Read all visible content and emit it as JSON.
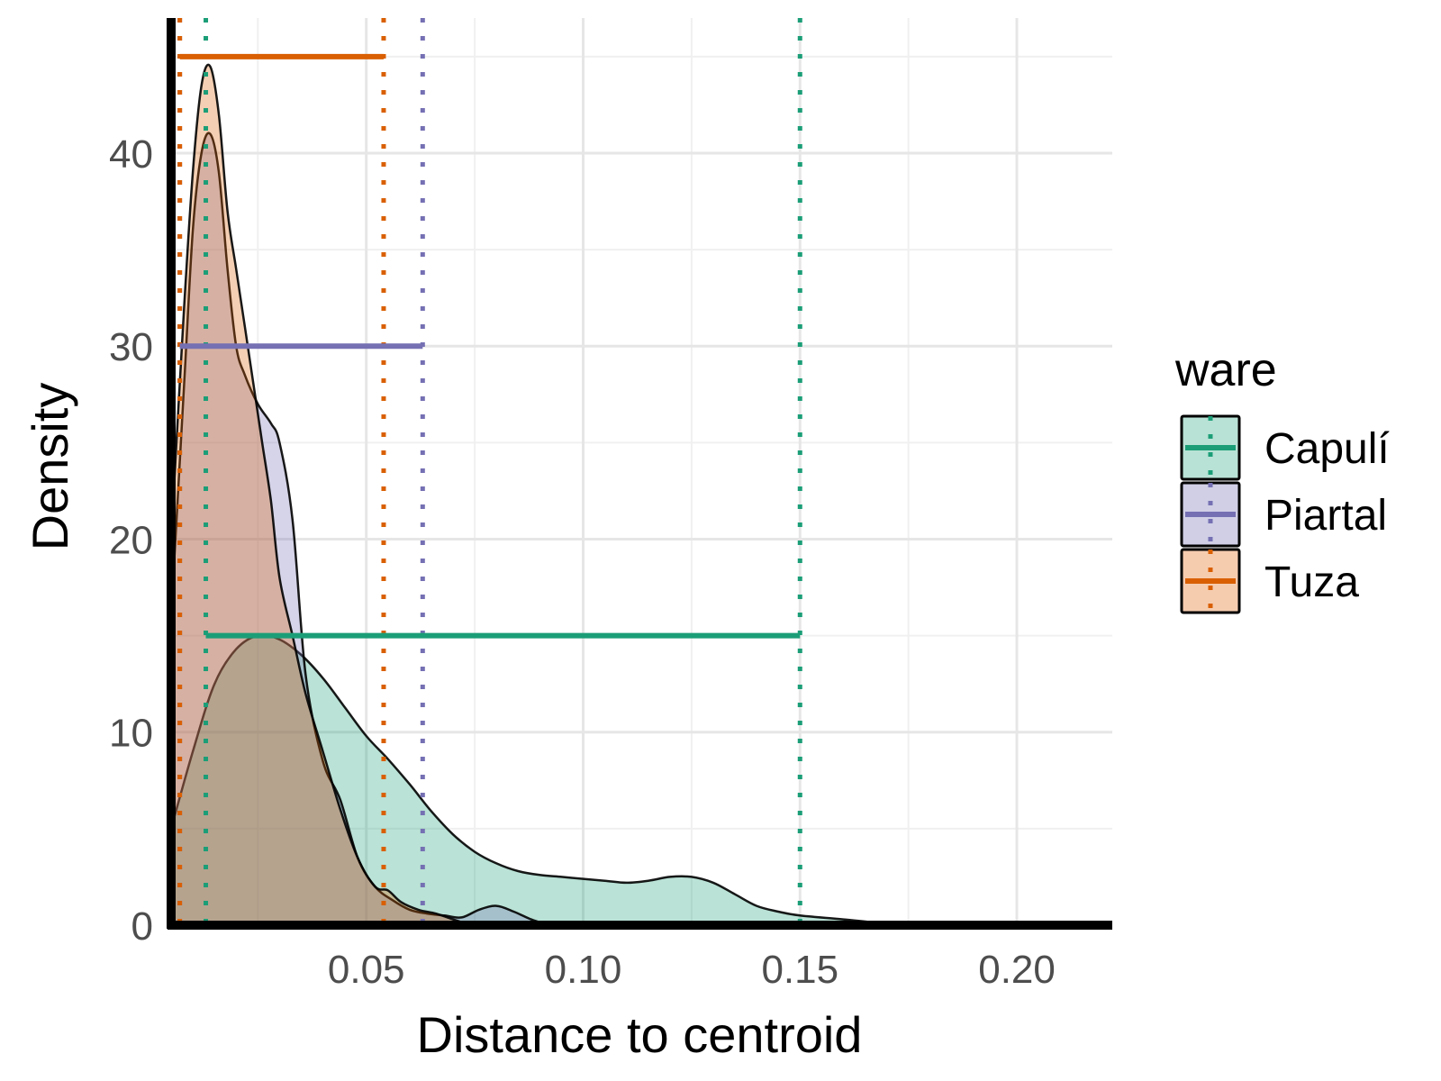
{
  "chart_data": {
    "type": "area",
    "title": "",
    "xlabel": "Distance to centroid",
    "ylabel": "Density",
    "xlim": [
      0.005,
      0.222
    ],
    "ylim": [
      0,
      47
    ],
    "x_ticks": [
      0.05,
      0.1,
      0.15,
      0.2
    ],
    "x_tick_labels": [
      "0.05",
      "0.10",
      "0.15",
      "0.20"
    ],
    "y_ticks": [
      0,
      10,
      20,
      30,
      40
    ],
    "y_tick_labels": [
      "0",
      "10",
      "20",
      "30",
      "40"
    ],
    "grid": true,
    "legend": {
      "title": "ware",
      "position": "right"
    },
    "series": [
      {
        "name": "Capulí",
        "color": "#1b9e77",
        "fill": "#b8e2d5",
        "range_line": {
          "x_start": 0.013,
          "x_end": 0.15,
          "y": 15
        },
        "vlines": [
          0.013,
          0.15
        ],
        "x": [
          0.005,
          0.01,
          0.015,
          0.02,
          0.025,
          0.03,
          0.035,
          0.04,
          0.045,
          0.05,
          0.055,
          0.06,
          0.065,
          0.07,
          0.075,
          0.08,
          0.085,
          0.09,
          0.095,
          0.1,
          0.105,
          0.11,
          0.115,
          0.12,
          0.125,
          0.13,
          0.135,
          0.14,
          0.145,
          0.15,
          0.16,
          0.17,
          0.18,
          0.19,
          0.2,
          0.21
        ],
        "values": [
          5.0,
          9.0,
          12.5,
          14.3,
          15.0,
          14.8,
          14.0,
          12.8,
          11.3,
          9.8,
          8.6,
          7.3,
          5.9,
          4.7,
          3.8,
          3.2,
          2.8,
          2.6,
          2.5,
          2.4,
          2.3,
          2.2,
          2.3,
          2.5,
          2.5,
          2.2,
          1.6,
          1.0,
          0.7,
          0.5,
          0.3,
          0.1,
          0.05,
          0.05,
          0.1,
          0.0
        ]
      },
      {
        "name": "Piartal",
        "color": "#7570b3",
        "fill": "#d0cfe6",
        "range_line": {
          "x_start": 0.007,
          "x_end": 0.063,
          "y": 30
        },
        "vlines": [
          0.007,
          0.063
        ],
        "x": [
          0.005,
          0.008,
          0.01,
          0.012,
          0.014,
          0.016,
          0.018,
          0.02,
          0.022,
          0.025,
          0.028,
          0.03,
          0.033,
          0.036,
          0.04,
          0.044,
          0.048,
          0.052,
          0.056,
          0.06,
          0.064,
          0.068,
          0.072,
          0.076,
          0.08,
          0.084,
          0.088,
          0.092
        ],
        "values": [
          16.0,
          28.0,
          36.0,
          40.0,
          41.0,
          39.0,
          34.0,
          30.0,
          28.5,
          27.0,
          26.0,
          25.0,
          21.0,
          13.0,
          8.5,
          6.5,
          3.5,
          2.0,
          1.3,
          0.8,
          0.6,
          0.5,
          0.4,
          0.8,
          1.0,
          0.7,
          0.3,
          0.0
        ]
      },
      {
        "name": "Tuza",
        "color": "#d95f02",
        "fill": "#f6ccaf",
        "range_line": {
          "x_start": 0.007,
          "x_end": 0.054,
          "y": 45
        },
        "vlines": [
          0.007,
          0.054
        ],
        "x": [
          0.005,
          0.008,
          0.01,
          0.012,
          0.014,
          0.016,
          0.018,
          0.02,
          0.022,
          0.024,
          0.026,
          0.028,
          0.03,
          0.033,
          0.036,
          0.04,
          0.044,
          0.048,
          0.052,
          0.055,
          0.058,
          0.062,
          0.066,
          0.07,
          0.074
        ],
        "values": [
          20.0,
          32.0,
          39.0,
          43.5,
          44.5,
          42.0,
          37.0,
          34.0,
          31.0,
          28.0,
          25.0,
          22.0,
          18.0,
          15.0,
          12.0,
          9.0,
          6.0,
          3.5,
          2.0,
          1.8,
          1.2,
          0.8,
          0.6,
          0.3,
          0.0
        ]
      }
    ]
  }
}
